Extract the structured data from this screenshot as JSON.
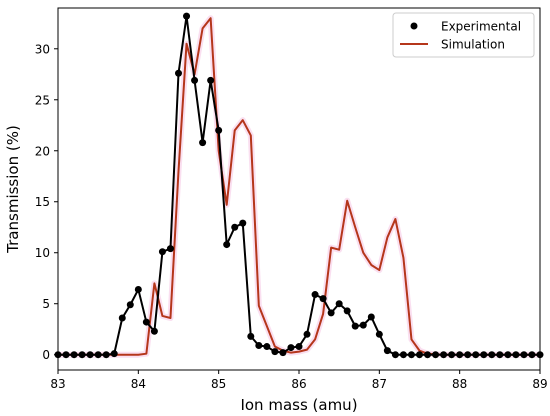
{
  "chart_data": {
    "type": "line",
    "title": "",
    "xlabel": "Ion mass (amu)",
    "ylabel": "Transmission (%)",
    "xlim": [
      83,
      89
    ],
    "ylim": [
      -1.5,
      34
    ],
    "x_ticks": [
      83,
      84,
      85,
      86,
      87,
      88,
      89
    ],
    "x_tick_labels": [
      "83",
      "84",
      "85",
      "86",
      "87",
      "88",
      "89"
    ],
    "y_ticks": [
      0,
      5,
      10,
      15,
      20,
      25,
      30
    ],
    "y_tick_labels": [
      "0",
      "5",
      "10",
      "15",
      "20",
      "25",
      "30"
    ],
    "grid": false,
    "legend": "top-right",
    "series": [
      {
        "name": "Experimental",
        "kind": "line+markers",
        "color": "#000000",
        "x": [
          83.0,
          83.1,
          83.2,
          83.3,
          83.4,
          83.5,
          83.6,
          83.7,
          83.8,
          83.9,
          84.0,
          84.1,
          84.2,
          84.3,
          84.4,
          84.5,
          84.6,
          84.7,
          84.8,
          84.9,
          85.0,
          85.1,
          85.2,
          85.3,
          85.4,
          85.5,
          85.6,
          85.7,
          85.8,
          85.9,
          86.0,
          86.1,
          86.2,
          86.3,
          86.4,
          86.5,
          86.6,
          86.7,
          86.8,
          86.9,
          87.0,
          87.1,
          87.2,
          87.3,
          87.4,
          87.5,
          87.6,
          87.7,
          87.8,
          87.9,
          88.0,
          88.1,
          88.2,
          88.3,
          88.4,
          88.5,
          88.6,
          88.7,
          88.8,
          88.9,
          89.0
        ],
        "y": [
          0,
          0,
          0,
          0,
          0,
          0,
          0,
          0.1,
          3.6,
          4.9,
          6.4,
          3.2,
          2.3,
          10.1,
          10.4,
          27.6,
          33.2,
          26.9,
          20.8,
          26.9,
          22.0,
          10.8,
          12.5,
          12.9,
          1.8,
          0.9,
          0.8,
          0.3,
          0.2,
          0.7,
          0.8,
          2.0,
          5.9,
          5.5,
          4.1,
          5.0,
          4.3,
          2.8,
          2.9,
          3.7,
          2.0,
          0.4,
          0,
          0,
          0,
          0,
          0,
          0,
          0,
          0,
          0,
          0,
          0,
          0,
          0,
          0,
          0,
          0,
          0,
          0,
          0
        ]
      },
      {
        "name": "Simulation",
        "kind": "line",
        "color": "#b5361b",
        "x": [
          83.0,
          83.1,
          83.2,
          83.3,
          83.4,
          83.5,
          83.6,
          83.7,
          83.8,
          83.9,
          84.0,
          84.1,
          84.2,
          84.3,
          84.4,
          84.5,
          84.6,
          84.7,
          84.8,
          84.9,
          85.0,
          85.1,
          85.2,
          85.3,
          85.4,
          85.5,
          85.6,
          85.7,
          85.8,
          85.9,
          86.0,
          86.1,
          86.2,
          86.3,
          86.4,
          86.5,
          86.6,
          86.7,
          86.8,
          86.9,
          87.0,
          87.1,
          87.2,
          87.3,
          87.4,
          87.5,
          87.6,
          87.7,
          87.8,
          87.9,
          88.0,
          88.1,
          88.2,
          88.3,
          88.4,
          88.5,
          88.6,
          88.7,
          88.8,
          88.9,
          89.0
        ],
        "y": [
          0,
          0,
          0,
          0,
          0,
          0,
          0,
          0,
          0,
          0,
          0,
          0.1,
          7.0,
          3.8,
          3.6,
          18.0,
          30.5,
          27.5,
          32.0,
          33.0,
          20.0,
          14.7,
          22.0,
          23.0,
          21.5,
          4.8,
          2.8,
          0.8,
          0.4,
          0.2,
          0.3,
          0.5,
          1.5,
          4.0,
          10.5,
          10.3,
          15.1,
          12.5,
          10.0,
          8.8,
          8.3,
          11.5,
          13.3,
          9.5,
          1.5,
          0.4,
          0.1,
          0.05,
          0,
          0,
          0,
          0,
          0,
          0,
          0,
          0,
          0,
          0,
          0,
          0,
          0
        ]
      }
    ]
  }
}
